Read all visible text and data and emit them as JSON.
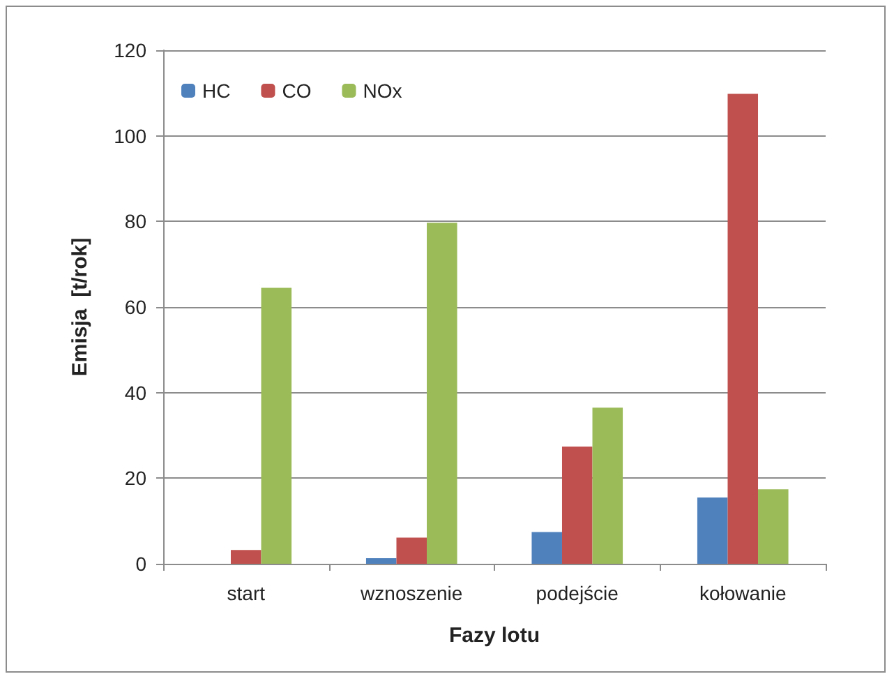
{
  "chart_data": {
    "type": "bar",
    "xlabel": "Fazy lotu",
    "ylabel": "Emisja  [t/rok]",
    "categories": [
      "start",
      "wznoszenie",
      "podejście",
      "kołowanie"
    ],
    "series": [
      {
        "name": "HC",
        "color": "#4f81bd",
        "values": [
          0,
          1.3,
          7.4,
          15.5
        ]
      },
      {
        "name": "CO",
        "color": "#c0504d",
        "values": [
          3.2,
          6.1,
          27.4,
          109.8
        ]
      },
      {
        "name": "NOx",
        "color": "#9bbb59",
        "values": [
          64.5,
          79.7,
          36.5,
          17.4
        ]
      }
    ],
    "ylim": [
      0,
      120
    ],
    "yticks": [
      0,
      20,
      40,
      60,
      80,
      100,
      120
    ],
    "grid": "y",
    "legend": "top left"
  }
}
